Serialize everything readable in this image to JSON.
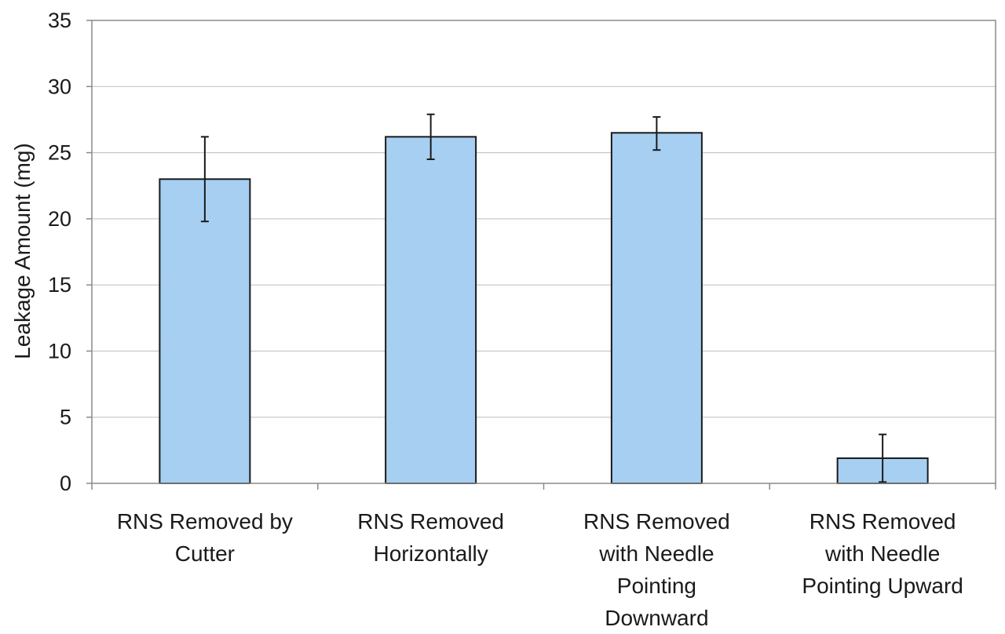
{
  "chart_data": {
    "type": "bar",
    "title": "",
    "xlabel": "",
    "ylabel": "Leakage Amount (mg)",
    "ylim": [
      0,
      35
    ],
    "yticks": [
      0,
      5,
      10,
      15,
      20,
      25,
      30,
      35
    ],
    "grid": true,
    "categories": [
      [
        "RNS Removed by",
        "Cutter"
      ],
      [
        "RNS Removed",
        "Horizontally"
      ],
      [
        "RNS Removed",
        "with Needle",
        "Pointing",
        "Downward"
      ],
      [
        "RNS Removed",
        "with Needle",
        "Pointing Upward"
      ]
    ],
    "values": [
      23.0,
      26.2,
      26.5,
      1.9
    ],
    "error_low": [
      19.8,
      24.5,
      25.2,
      0.1
    ],
    "error_high": [
      26.2,
      27.9,
      27.7,
      3.7
    ],
    "colors": {
      "bar_fill": "#a6cff2",
      "bar_stroke": "#1a1a1a",
      "grid": "#bdbdbd",
      "axis": "#8a8a8a",
      "error_bar": "#1a1a1a"
    }
  }
}
